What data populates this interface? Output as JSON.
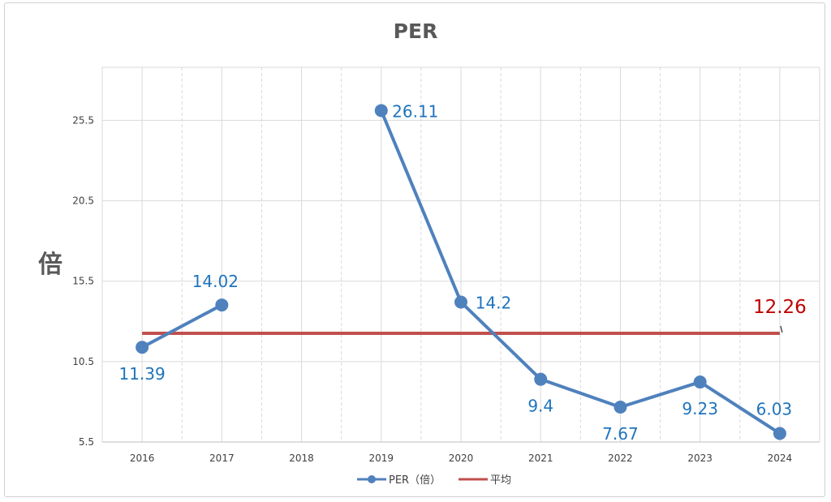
{
  "chart_data": {
    "type": "line",
    "title": "PER",
    "ylabel": "倍",
    "xlabel": "",
    "categories": [
      "2016",
      "2017",
      "2018",
      "2019",
      "2020",
      "2021",
      "2022",
      "2023",
      "2024"
    ],
    "yticks": [
      "5.5",
      "10.5",
      "15.5",
      "20.5",
      "25.5"
    ],
    "ylim": [
      5.5,
      28.8
    ],
    "grid": true,
    "legend_position": "bottom",
    "series": [
      {
        "name": "PER（倍）",
        "values": [
          11.39,
          14.02,
          null,
          26.11,
          14.2,
          9.4,
          7.67,
          9.23,
          6.03
        ],
        "labels": [
          "11.39",
          "14.02",
          "",
          "26.11",
          "14.2",
          "9.4",
          "7.67",
          "9.23",
          "6.03"
        ],
        "color": "#4f81bd"
      },
      {
        "name": "平均",
        "value": 12.26,
        "label": "12.26",
        "color": "#c0504d"
      }
    ],
    "label_color": "#1f74bd",
    "avg_label_color": "#c00000"
  }
}
